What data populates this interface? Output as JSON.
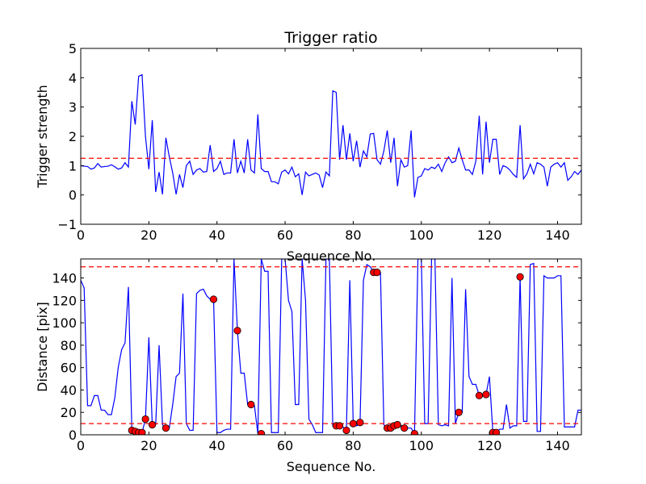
{
  "chart_data": [
    {
      "type": "line",
      "title": "Trigger ratio",
      "xlabel": "Sequence No.",
      "ylabel": "Trigger strength",
      "xlim": [
        0,
        147
      ],
      "ylim": [
        -1,
        5
      ],
      "xticks": [
        "0",
        "20",
        "40",
        "60",
        "80",
        "100",
        "120",
        "140"
      ],
      "yticks": [
        "−1",
        "0",
        "1",
        "2",
        "3",
        "4",
        "5"
      ],
      "series": [
        {
          "color": "#0000ff",
          "x": [
            0,
            1,
            2,
            3,
            4,
            5,
            6,
            7,
            8,
            9,
            10,
            11,
            12,
            13,
            14,
            15,
            16,
            17,
            18,
            19,
            20,
            21,
            22,
            23,
            24,
            25,
            26,
            27,
            28,
            29,
            30,
            31,
            32,
            33,
            34,
            35,
            36,
            37,
            38,
            39,
            40,
            41,
            42,
            43,
            44,
            45,
            46,
            47,
            48,
            49,
            50,
            51,
            52,
            53,
            54,
            55,
            56,
            57,
            58,
            59,
            60,
            61,
            62,
            63,
            64,
            65,
            66,
            67,
            68,
            69,
            70,
            71,
            72,
            73,
            74,
            75,
            76,
            77,
            78,
            79,
            80,
            81,
            82,
            83,
            84,
            85,
            86,
            87,
            88,
            89,
            90,
            91,
            92,
            93,
            94,
            95,
            96,
            97,
            98,
            99,
            100,
            101,
            102,
            103,
            104,
            105,
            106,
            107,
            108,
            109,
            110,
            111,
            112,
            113,
            114,
            115,
            116,
            117,
            118,
            119,
            120,
            121,
            122,
            123,
            124,
            125,
            126,
            127,
            128,
            129,
            130,
            131,
            132,
            133,
            134,
            135,
            136,
            137,
            138,
            139,
            140,
            141,
            142,
            143,
            144,
            145,
            146,
            147
          ],
          "y": [
            1.0,
            0.98,
            0.97,
            0.88,
            0.92,
            1.07,
            0.95,
            0.97,
            0.98,
            1.03,
            0.96,
            0.88,
            0.92,
            1.1,
            0.95,
            3.2,
            2.4,
            4.05,
            4.1,
            2.0,
            0.88,
            2.55,
            0.1,
            0.78,
            0.02,
            1.95,
            1.3,
            0.75,
            0.02,
            0.7,
            0.25,
            1.0,
            1.15,
            0.7,
            0.85,
            0.9,
            0.78,
            0.8,
            1.7,
            0.8,
            0.9,
            1.15,
            0.7,
            0.75,
            0.75,
            1.9,
            0.75,
            1.15,
            0.75,
            1.9,
            0.85,
            0.75,
            2.75,
            0.9,
            0.8,
            0.8,
            0.45,
            0.45,
            0.38,
            0.78,
            0.85,
            0.72,
            0.95,
            0.62,
            0.72,
            0.0,
            0.78,
            0.65,
            0.7,
            0.75,
            0.68,
            0.25,
            0.78,
            0.65,
            3.55,
            3.5,
            1.2,
            2.38,
            1.2,
            2.1,
            1.15,
            1.85,
            0.95,
            1.5,
            1.3,
            2.08,
            2.1,
            1.2,
            1.05,
            1.5,
            2.2,
            1.1,
            1.95,
            0.3,
            1.2,
            0.95,
            1.0,
            2.2,
            -0.08,
            0.6,
            0.65,
            0.9,
            0.85,
            0.95,
            0.9,
            1.05,
            0.8,
            1.1,
            1.3,
            1.1,
            1.15,
            1.6,
            1.2,
            0.85,
            0.85,
            0.7,
            1.15,
            2.7,
            0.7,
            2.5,
            1.1,
            1.9,
            1.9,
            0.7,
            1.0,
            0.95,
            0.85,
            0.7,
            0.6,
            2.38,
            0.55,
            0.72,
            1.05,
            0.72,
            1.1,
            1.05,
            0.95,
            0.3,
            0.95,
            1.05,
            1.1,
            0.95,
            1.1,
            0.5,
            0.62,
            0.8,
            0.7,
            0.85
          ]
        }
      ],
      "hlines": [
        {
          "y": 1.25,
          "color": "#ff0000",
          "style": "dashed"
        }
      ],
      "grid": false
    },
    {
      "type": "line",
      "title": "",
      "xlabel": "Sequence No.",
      "ylabel": "Distance [pix]",
      "xlim": [
        0,
        147
      ],
      "ylim": [
        0,
        157
      ],
      "xticks": [
        "0",
        "20",
        "40",
        "60",
        "80",
        "100",
        "120",
        "140"
      ],
      "yticks": [
        "0",
        "20",
        "40",
        "60",
        "80",
        "100",
        "120",
        "140"
      ],
      "series": [
        {
          "color": "#0000ff",
          "x": [
            0,
            1,
            2,
            3,
            4,
            5,
            6,
            7,
            8,
            9,
            10,
            11,
            12,
            13,
            14,
            15,
            16,
            17,
            18,
            19,
            20,
            21,
            22,
            23,
            24,
            25,
            26,
            27,
            28,
            29,
            30,
            31,
            32,
            33,
            34,
            35,
            36,
            37,
            38,
            39,
            40,
            41,
            42,
            43,
            44,
            45,
            46,
            47,
            48,
            49,
            50,
            51,
            52,
            53,
            54,
            55,
            56,
            57,
            58,
            59,
            60,
            61,
            62,
            63,
            64,
            65,
            66,
            67,
            68,
            69,
            70,
            71,
            72,
            73,
            74,
            75,
            76,
            77,
            78,
            79,
            80,
            81,
            82,
            83,
            84,
            85,
            86,
            87,
            88,
            89,
            90,
            91,
            92,
            93,
            94,
            95,
            96,
            97,
            98,
            99,
            100,
            101,
            102,
            103,
            104,
            105,
            106,
            107,
            108,
            109,
            110,
            111,
            112,
            113,
            114,
            115,
            116,
            117,
            118,
            119,
            120,
            121,
            122,
            123,
            124,
            125,
            126,
            127,
            128,
            129,
            130,
            131,
            132,
            133,
            134,
            135,
            136,
            137,
            138,
            139,
            140,
            141,
            142,
            143,
            144,
            145,
            146,
            147
          ],
          "y": [
            138,
            131,
            26,
            26,
            35,
            35,
            22,
            22,
            18,
            18,
            33,
            60,
            76,
            82,
            132,
            4,
            3,
            2,
            2,
            14,
            87,
            9,
            9,
            80,
            9,
            6,
            6,
            27,
            52,
            55,
            126,
            10,
            4,
            4,
            126,
            129,
            130,
            124,
            121,
            121,
            2,
            2,
            4,
            5,
            5,
            157,
            93,
            55,
            55,
            27,
            27,
            26,
            1,
            157,
            146,
            146,
            2,
            2,
            2,
            157,
            157,
            120,
            110,
            27,
            27,
            157,
            120,
            14,
            9,
            2,
            2,
            2,
            157,
            157,
            8,
            9,
            9,
            7,
            4,
            138,
            10,
            8,
            10,
            138,
            152,
            150,
            145,
            145,
            145,
            9,
            6,
            6,
            6,
            10,
            8,
            8,
            6,
            6,
            1,
            157,
            157,
            10,
            10,
            157,
            157,
            9,
            8,
            9,
            8,
            140,
            10,
            20,
            20,
            130,
            52,
            45,
            45,
            35,
            36,
            36,
            52,
            2,
            2,
            5,
            5,
            27,
            6,
            8,
            8,
            141,
            12,
            12,
            152,
            153,
            3,
            3,
            142,
            140,
            140,
            140,
            142,
            142,
            7,
            7,
            7,
            7,
            22,
            22
          ]
        }
      ],
      "markers": {
        "color": "#ff0000",
        "x": [
          15,
          16,
          17,
          18,
          19,
          21,
          25,
          39,
          46,
          50,
          53,
          75,
          76,
          78,
          80,
          82,
          86,
          87,
          90,
          91,
          92,
          93,
          95,
          98,
          111,
          117,
          119,
          121,
          122,
          129
        ],
        "y": [
          4,
          3,
          2,
          2,
          14,
          9,
          6,
          121,
          93,
          27,
          1,
          8,
          8,
          4,
          10,
          11,
          145,
          145,
          6,
          6,
          8,
          9,
          6,
          1,
          20,
          35,
          36,
          2,
          2,
          141
        ]
      },
      "hlines": [
        {
          "y": 150,
          "color": "#ff0000",
          "style": "dashed"
        },
        {
          "y": 10,
          "color": "#ff0000",
          "style": "dashed"
        }
      ],
      "grid": false
    }
  ]
}
